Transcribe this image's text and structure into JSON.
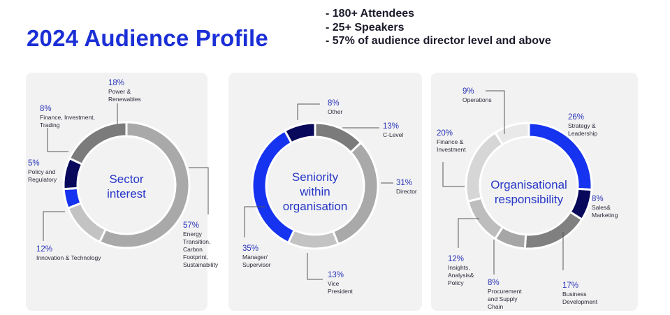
{
  "header": {
    "title": "2024 Audience Profile",
    "bullets": [
      "- 180+ Attendees",
      "- 25+ Speakers",
      "- 57% of audience director level and above"
    ]
  },
  "chart_data": [
    {
      "type": "pie",
      "title": "Sector\ninterest",
      "slices": [
        {
          "pct": "57%",
          "label": "Energy\nTransition,\nCarbon\nFootprint,\nSustainability",
          "value": 57,
          "color": "#a9a9a9"
        },
        {
          "pct": "12%",
          "label": "Innovation & Technology",
          "value": 12,
          "color": "#c3c3c3"
        },
        {
          "pct": "5%",
          "label": "Policy and\nRegulatory",
          "value": 5,
          "color": "#1633f0"
        },
        {
          "pct": "8%",
          "label": "Finance, Investment,\nTrading",
          "value": 8,
          "color": "#08095a"
        },
        {
          "pct": "18%",
          "label": "Power &\nRenewables",
          "value": 18,
          "color": "#7b7b7b"
        }
      ]
    },
    {
      "type": "pie",
      "title": "Seniority\nwithin\norganisation",
      "slices": [
        {
          "pct": "13%",
          "label": "C-Level",
          "value": 13,
          "color": "#7b7b7b"
        },
        {
          "pct": "31%",
          "label": "Director",
          "value": 31,
          "color": "#a9a9a9"
        },
        {
          "pct": "13%",
          "label": "Vice\nPresident",
          "value": 13,
          "color": "#c3c3c3"
        },
        {
          "pct": "35%",
          "label": "Manager/\nSupervisor",
          "value": 35,
          "color": "#1633f0"
        },
        {
          "pct": "8%",
          "label": "Other",
          "value": 8,
          "color": "#08095a"
        }
      ]
    },
    {
      "type": "pie",
      "title": "Organisational\nresponsibility",
      "slices": [
        {
          "pct": "26%",
          "label": "Strategy &\nLeadership",
          "value": 26,
          "color": "#1633f0"
        },
        {
          "pct": "8%",
          "label": "Sales&\nMarketing",
          "value": 8,
          "color": "#08095a"
        },
        {
          "pct": "17%",
          "label": "Business\nDevelopment",
          "value": 17,
          "color": "#808080"
        },
        {
          "pct": "8%",
          "label": "Procurement\nand Supply\nChain",
          "value": 8,
          "color": "#a6a6a6"
        },
        {
          "pct": "12%",
          "label": "Insights,\nAnalysis&\nPolicy",
          "value": 12,
          "color": "#bdbdbd"
        },
        {
          "pct": "20%",
          "label": "Finance &\nInvestment",
          "value": 20,
          "color": "#d6d6d6"
        },
        {
          "pct": "9%",
          "label": "Operations",
          "value": 9,
          "color": "#e9e9e9"
        }
      ]
    }
  ]
}
